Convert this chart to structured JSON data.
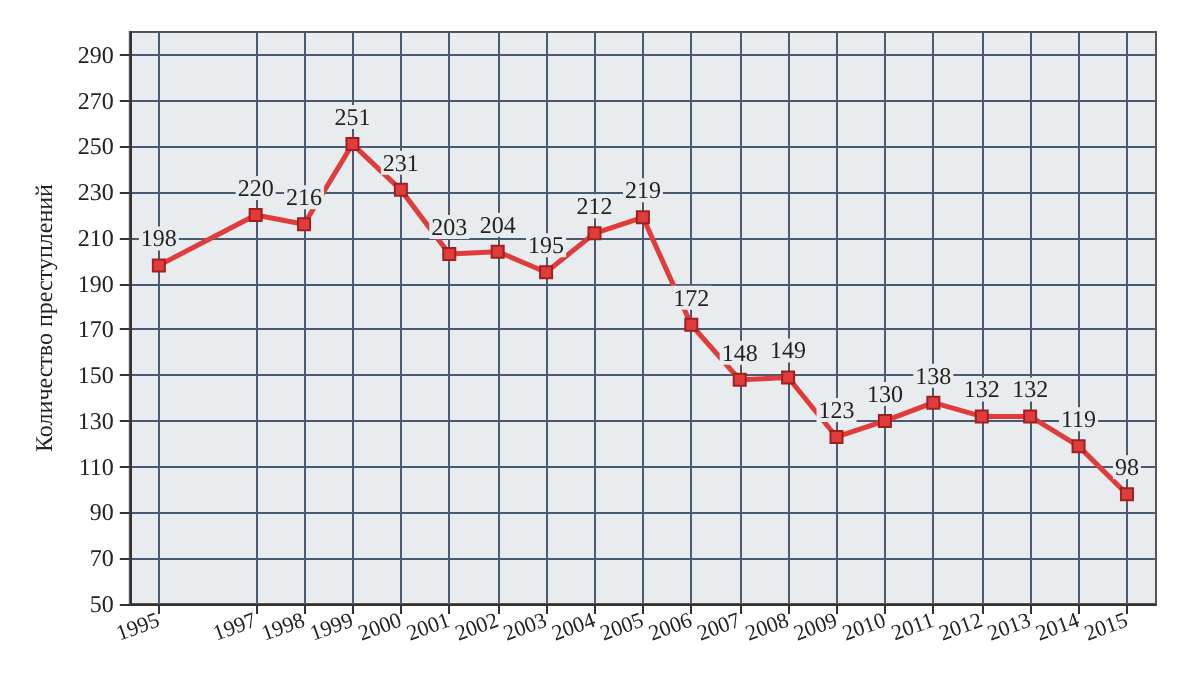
{
  "chart_data": {
    "type": "line",
    "ylabel": "Количество преступлений",
    "x": [
      1995,
      1997,
      1998,
      1999,
      2000,
      2001,
      2002,
      2003,
      2004,
      2005,
      2006,
      2007,
      2008,
      2009,
      2010,
      2011,
      2012,
      2013,
      2014,
      2015
    ],
    "series": [
      {
        "color": "#e03c3c",
        "values": [
          198,
          220,
          216,
          251,
          231,
          203,
          204,
          195,
          212,
          219,
          172,
          148,
          149,
          123,
          130,
          138,
          132,
          132,
          119,
          98
        ]
      }
    ],
    "xlim": [
      1994.4,
      2015.6
    ],
    "xticks": [
      1995,
      1997,
      1998,
      1999,
      2000,
      2001,
      2002,
      2003,
      2004,
      2005,
      2006,
      2007,
      2008,
      2009,
      2010,
      2011,
      2012,
      2013,
      2014,
      2015
    ],
    "ylim": [
      50,
      300
    ],
    "yticks": [
      50,
      70,
      90,
      110,
      130,
      150,
      170,
      190,
      210,
      230,
      250,
      270,
      290
    ],
    "grid": true,
    "marker": "square",
    "line_style": "solid",
    "data_labels": true
  }
}
